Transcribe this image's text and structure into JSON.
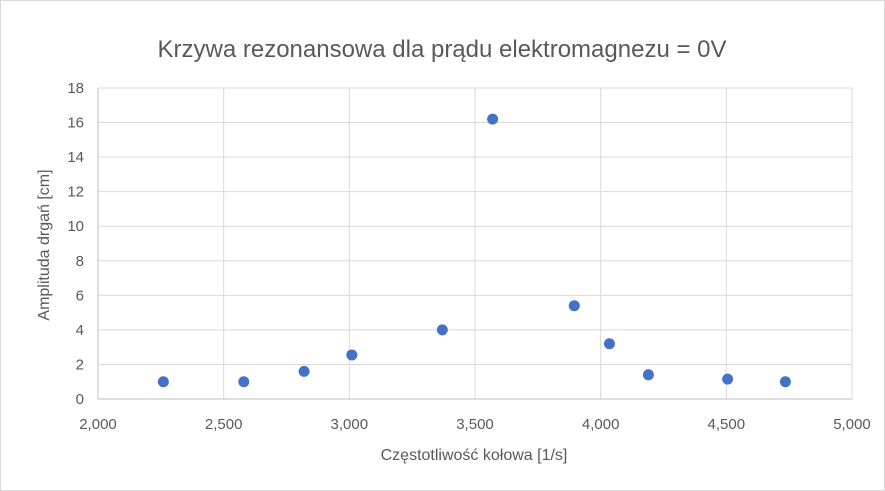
{
  "chart_data": {
    "type": "scatter",
    "title": "Krzywa rezonansowa dla prądu elektromagnezu = 0V",
    "xlabel": "Częstotliwość kołowa [1/s]",
    "ylabel": "Amplituda drgań [cm]",
    "xlim": [
      2000,
      5000
    ],
    "ylim": [
      0,
      18
    ],
    "x_ticks": [
      2000,
      2500,
      3000,
      3500,
      4000,
      4500,
      5000
    ],
    "x_tick_labels": [
      "2,000",
      "2,500",
      "3,000",
      "3,500",
      "4,000",
      "4,500",
      "5,000"
    ],
    "y_ticks": [
      0,
      2,
      4,
      6,
      8,
      10,
      12,
      14,
      16,
      18
    ],
    "y_tick_labels": [
      "0",
      "2",
      "4",
      "6",
      "8",
      "10",
      "12",
      "14",
      "16",
      "18"
    ],
    "grid": true,
    "legend": "none",
    "marker_color": "#4472c4",
    "points": [
      {
        "x": 2260,
        "y": 1.0
      },
      {
        "x": 2580,
        "y": 1.0
      },
      {
        "x": 2820,
        "y": 1.6
      },
      {
        "x": 3010,
        "y": 2.55
      },
      {
        "x": 3370,
        "y": 4.0
      },
      {
        "x": 3570,
        "y": 16.2
      },
      {
        "x": 3895,
        "y": 5.4
      },
      {
        "x": 4035,
        "y": 3.2
      },
      {
        "x": 4190,
        "y": 1.4
      },
      {
        "x": 4505,
        "y": 1.15
      },
      {
        "x": 4735,
        "y": 1.0
      }
    ]
  }
}
